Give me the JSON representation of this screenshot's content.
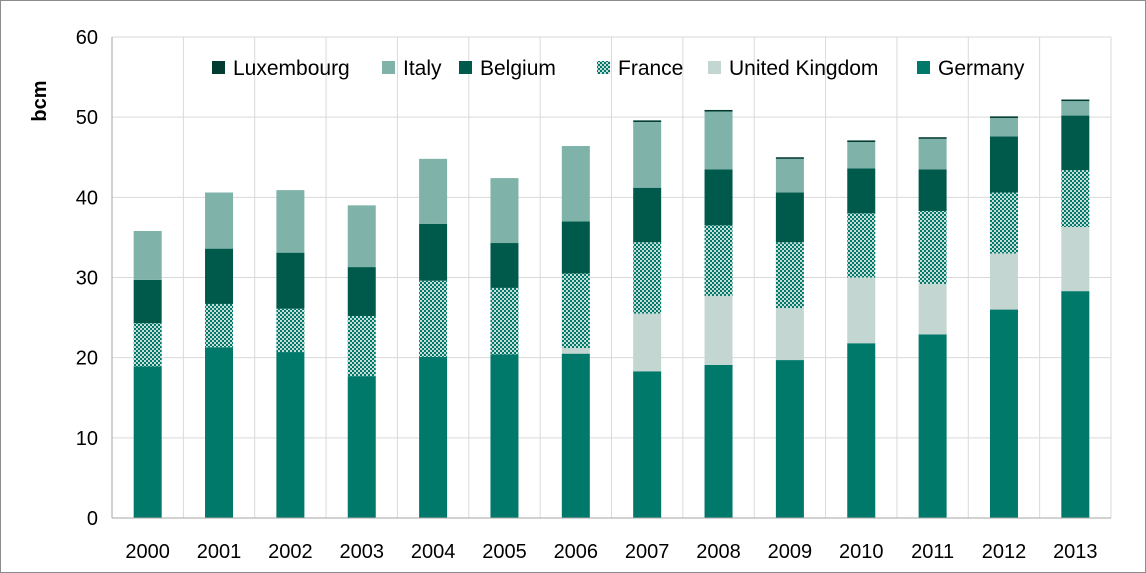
{
  "chart_data": {
    "type": "bar",
    "stacked": true,
    "ylabel": "bcm",
    "xlabel": "",
    "title": "",
    "ylim": [
      0,
      60
    ],
    "yticks": [
      0,
      10,
      20,
      30,
      40,
      50,
      60
    ],
    "grid": true,
    "legend_position": "top",
    "categories": [
      "2000",
      "2001",
      "2002",
      "2003",
      "2004",
      "2005",
      "2006",
      "2007",
      "2008",
      "2009",
      "2010",
      "2011",
      "2012",
      "2013"
    ],
    "series": [
      {
        "name": "Germany",
        "color": "#00786a",
        "pattern": "solid",
        "values": [
          18.9,
          21.3,
          20.7,
          17.7,
          20.1,
          20.4,
          20.5,
          18.3,
          19.1,
          19.7,
          21.8,
          22.9,
          26.0,
          28.3
        ]
      },
      {
        "name": "United Kingdom",
        "color": "#c3d6d1",
        "pattern": "solid",
        "values": [
          0,
          0,
          0,
          0,
          0,
          0,
          0.7,
          7.2,
          8.6,
          6.5,
          8.2,
          6.3,
          7.0,
          8.0
        ]
      },
      {
        "name": "France",
        "color": "#3a8c7e",
        "pattern": "checker",
        "values": [
          5.4,
          5.4,
          5.4,
          7.5,
          9.5,
          8.3,
          9.3,
          8.9,
          8.8,
          8.2,
          8.0,
          9.1,
          7.6,
          7.1
        ]
      },
      {
        "name": "Belgium",
        "color": "#005a4c",
        "pattern": "solid",
        "values": [
          5.4,
          6.9,
          7.0,
          6.1,
          7.1,
          5.6,
          6.5,
          6.8,
          7.0,
          6.2,
          5.6,
          5.2,
          7.0,
          6.8
        ]
      },
      {
        "name": "Italy",
        "color": "#7fb2a8",
        "pattern": "solid",
        "values": [
          6.1,
          7.0,
          7.8,
          7.7,
          8.1,
          8.1,
          9.4,
          8.2,
          7.2,
          4.2,
          3.3,
          3.8,
          2.3,
          1.8
        ]
      },
      {
        "name": "Luxembourg",
        "color": "#003c32",
        "pattern": "solid",
        "values": [
          0.0,
          0.0,
          0.0,
          0.0,
          0.0,
          0.0,
          0.0,
          0.2,
          0.2,
          0.2,
          0.2,
          0.2,
          0.2,
          0.2
        ]
      }
    ],
    "legend_order": [
      "Luxembourg",
      "Italy",
      "Belgium",
      "France",
      "United Kingdom",
      "Germany"
    ]
  }
}
